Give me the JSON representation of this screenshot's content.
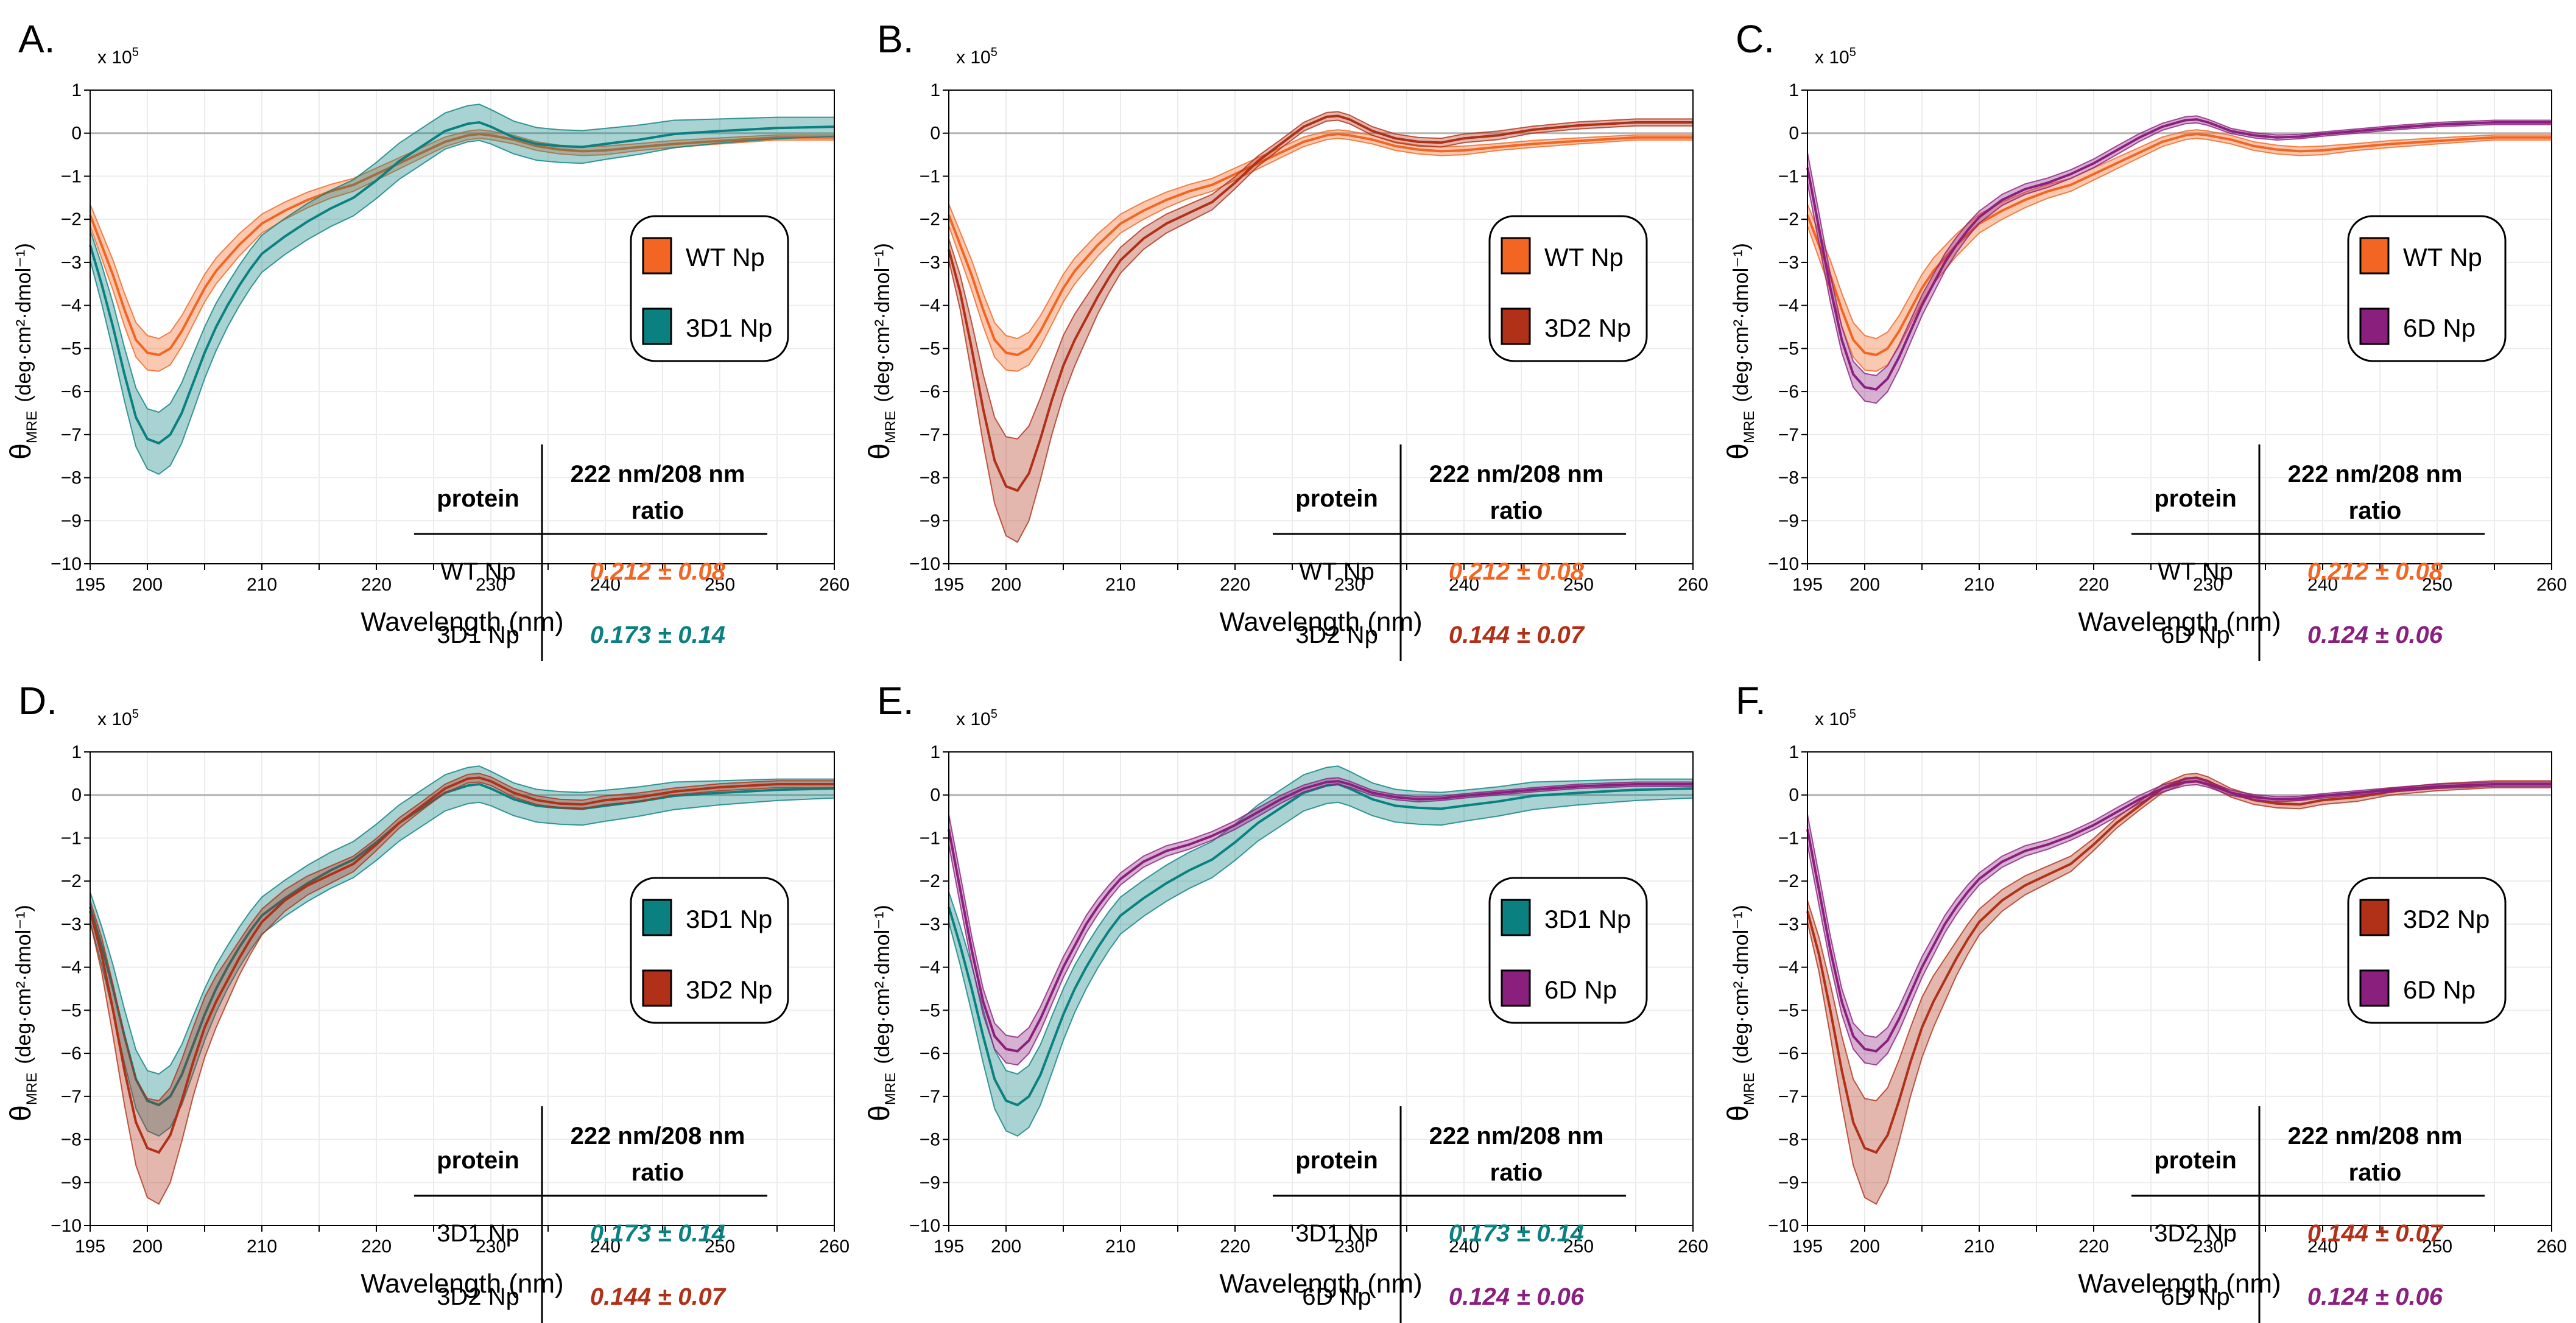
{
  "figure": {
    "colors": {
      "WT Np": "#F26522",
      "3D1 Np": "#0A8080",
      "3D2 Np": "#B03018",
      "6D Np": "#8B1F7E"
    }
  },
  "chart_data": [
    {
      "panel": "A.",
      "type": "area",
      "multiplier_label": "x 10",
      "multiplier_exp": "5",
      "xlabel": "Wavelength (nm)",
      "ylabel_main": "θ",
      "ylabel_sub": "MRE",
      "ylabel_units": "(deg·cm²·dmol⁻¹)",
      "xlim": [
        195,
        260
      ],
      "ylim": [
        -10,
        1
      ],
      "xticks": [
        195,
        200,
        210,
        220,
        230,
        240,
        250,
        260
      ],
      "yticks": [
        1,
        0,
        -1,
        -2,
        -3,
        -4,
        -5,
        -6,
        -7,
        -8,
        -9,
        -10
      ],
      "grid": true,
      "legend_position": "right",
      "series": [
        "WT Np",
        "3D1 Np"
      ],
      "table": {
        "header_protein": "protein",
        "header_ratio_line1": "222 nm/208 nm",
        "header_ratio_line2": "ratio",
        "rows": [
          {
            "protein": "WT Np",
            "ratio": "0.212 ± 0.08"
          },
          {
            "protein": "3D1 Np",
            "ratio": "0.173 ± 0.14"
          }
        ]
      }
    },
    {
      "panel": "B.",
      "type": "area",
      "multiplier_label": "x 10",
      "multiplier_exp": "5",
      "xlabel": "Wavelength (nm)",
      "ylabel_main": "θ",
      "ylabel_sub": "MRE",
      "ylabel_units": "(deg·cm²·dmol⁻¹)",
      "xlim": [
        195,
        260
      ],
      "ylim": [
        -10,
        1
      ],
      "xticks": [
        195,
        200,
        210,
        220,
        230,
        240,
        250,
        260
      ],
      "yticks": [
        1,
        0,
        -1,
        -2,
        -3,
        -4,
        -5,
        -6,
        -7,
        -8,
        -9,
        -10
      ],
      "grid": true,
      "legend_position": "right",
      "series": [
        "WT Np",
        "3D2 Np"
      ],
      "table": {
        "header_protein": "protein",
        "header_ratio_line1": "222 nm/208 nm",
        "header_ratio_line2": "ratio",
        "rows": [
          {
            "protein": "WT Np",
            "ratio": "0.212 ± 0.08"
          },
          {
            "protein": "3D2 Np",
            "ratio": "0.144 ± 0.07"
          }
        ]
      }
    },
    {
      "panel": "C.",
      "type": "area",
      "multiplier_label": "x 10",
      "multiplier_exp": "5",
      "xlabel": "Wavelength (nm)",
      "ylabel_main": "θ",
      "ylabel_sub": "MRE",
      "ylabel_units": "(deg·cm²·dmol⁻¹)",
      "xlim": [
        195,
        260
      ],
      "ylim": [
        -10,
        1
      ],
      "xticks": [
        195,
        200,
        210,
        220,
        230,
        240,
        250,
        260
      ],
      "yticks": [
        1,
        0,
        -1,
        -2,
        -3,
        -4,
        -5,
        -6,
        -7,
        -8,
        -9,
        -10
      ],
      "grid": true,
      "legend_position": "right",
      "series": [
        "WT Np",
        "6D Np"
      ],
      "table": {
        "header_protein": "protein",
        "header_ratio_line1": "222 nm/208 nm",
        "header_ratio_line2": "ratio",
        "rows": [
          {
            "protein": "WT Np",
            "ratio": "0.212 ± 0.08"
          },
          {
            "protein": "6D Np",
            "ratio": "0.124 ± 0.06"
          }
        ]
      }
    },
    {
      "panel": "D.",
      "type": "area",
      "multiplier_label": "x 10",
      "multiplier_exp": "5",
      "xlabel": "Wavelength (nm)",
      "ylabel_main": "θ",
      "ylabel_sub": "MRE",
      "ylabel_units": "(deg·cm²·dmol⁻¹)",
      "xlim": [
        195,
        260
      ],
      "ylim": [
        -10,
        1
      ],
      "xticks": [
        195,
        200,
        210,
        220,
        230,
        240,
        250,
        260
      ],
      "yticks": [
        1,
        0,
        -1,
        -2,
        -3,
        -4,
        -5,
        -6,
        -7,
        -8,
        -9,
        -10
      ],
      "grid": true,
      "legend_position": "right",
      "series": [
        "3D1 Np",
        "3D2 Np"
      ],
      "table": {
        "header_protein": "protein",
        "header_ratio_line1": "222 nm/208 nm",
        "header_ratio_line2": "ratio",
        "rows": [
          {
            "protein": "3D1 Np",
            "ratio": "0.173 ± 0.14"
          },
          {
            "protein": "3D2 Np",
            "ratio": "0.144 ± 0.07"
          }
        ]
      }
    },
    {
      "panel": "E.",
      "type": "area",
      "multiplier_label": "x 10",
      "multiplier_exp": "5",
      "xlabel": "Wavelength (nm)",
      "ylabel_main": "θ",
      "ylabel_sub": "MRE",
      "ylabel_units": "(deg·cm²·dmol⁻¹)",
      "xlim": [
        195,
        260
      ],
      "ylim": [
        -10,
        1
      ],
      "xticks": [
        195,
        200,
        210,
        220,
        230,
        240,
        250,
        260
      ],
      "yticks": [
        1,
        0,
        -1,
        -2,
        -3,
        -4,
        -5,
        -6,
        -7,
        -8,
        -9,
        -10
      ],
      "grid": true,
      "legend_position": "right",
      "series": [
        "3D1 Np",
        "6D Np"
      ],
      "table": {
        "header_protein": "protein",
        "header_ratio_line1": "222 nm/208 nm",
        "header_ratio_line2": "ratio",
        "rows": [
          {
            "protein": "3D1 Np",
            "ratio": "0.173 ± 0.14"
          },
          {
            "protein": "6D Np",
            "ratio": "0.124 ± 0.06"
          }
        ]
      }
    },
    {
      "panel": "F.",
      "type": "area",
      "multiplier_label": "x 10",
      "multiplier_exp": "5",
      "xlabel": "Wavelength (nm)",
      "ylabel_main": "θ",
      "ylabel_sub": "MRE",
      "ylabel_units": "(deg·cm²·dmol⁻¹)",
      "xlim": [
        195,
        260
      ],
      "ylim": [
        -10,
        1
      ],
      "xticks": [
        195,
        200,
        210,
        220,
        230,
        240,
        250,
        260
      ],
      "yticks": [
        1,
        0,
        -1,
        -2,
        -3,
        -4,
        -5,
        -6,
        -7,
        -8,
        -9,
        -10
      ],
      "grid": true,
      "legend_position": "right",
      "series": [
        "3D2 Np",
        "6D Np"
      ],
      "table": {
        "header_protein": "protein",
        "header_ratio_line1": "222 nm/208 nm",
        "header_ratio_line2": "ratio",
        "rows": [
          {
            "protein": "3D2 Np",
            "ratio": "0.144 ± 0.07"
          },
          {
            "protein": "6D Np",
            "ratio": "0.124 ± 0.06"
          }
        ]
      }
    }
  ],
  "spectra": {
    "x": [
      195,
      196,
      197,
      198,
      199,
      200,
      201,
      202,
      203,
      204,
      205,
      206,
      207,
      208,
      209,
      210,
      212,
      214,
      216,
      218,
      220,
      222,
      224,
      226,
      228,
      229,
      230,
      232,
      234,
      236,
      238,
      240,
      243,
      246,
      250,
      255,
      260
    ],
    "WT Np": {
      "mean": [
        -1.9,
        -2.6,
        -3.3,
        -4.1,
        -4.8,
        -5.1,
        -5.15,
        -5.0,
        -4.6,
        -4.1,
        -3.6,
        -3.2,
        -2.9,
        -2.6,
        -2.35,
        -2.1,
        -1.8,
        -1.55,
        -1.35,
        -1.2,
        -0.95,
        -0.7,
        -0.45,
        -0.2,
        -0.05,
        -0.02,
        -0.05,
        -0.15,
        -0.3,
        -0.38,
        -0.42,
        -0.4,
        -0.32,
        -0.25,
        -0.18,
        -0.1,
        -0.1
      ],
      "sd": [
        0.25,
        0.3,
        0.35,
        0.38,
        0.4,
        0.4,
        0.38,
        0.38,
        0.36,
        0.34,
        0.32,
        0.3,
        0.28,
        0.26,
        0.24,
        0.22,
        0.2,
        0.18,
        0.16,
        0.15,
        0.14,
        0.13,
        0.12,
        0.11,
        0.1,
        0.1,
        0.1,
        0.1,
        0.1,
        0.1,
        0.1,
        0.1,
        0.08,
        0.08,
        0.07,
        0.06,
        0.06
      ]
    },
    "3D1 Np": {
      "mean": [
        -2.6,
        -3.5,
        -4.5,
        -5.6,
        -6.6,
        -7.1,
        -7.2,
        -7.0,
        -6.5,
        -5.8,
        -5.1,
        -4.5,
        -4.0,
        -3.55,
        -3.15,
        -2.8,
        -2.4,
        -2.05,
        -1.75,
        -1.5,
        -1.1,
        -0.65,
        -0.3,
        0.05,
        0.22,
        0.25,
        0.15,
        -0.1,
        -0.25,
        -0.3,
        -0.32,
        -0.25,
        -0.15,
        -0.02,
        0.05,
        0.12,
        0.15
      ],
      "sd": [
        0.35,
        0.45,
        0.55,
        0.62,
        0.68,
        0.7,
        0.72,
        0.72,
        0.7,
        0.66,
        0.6,
        0.55,
        0.5,
        0.47,
        0.45,
        0.43,
        0.42,
        0.42,
        0.42,
        0.42,
        0.42,
        0.42,
        0.42,
        0.42,
        0.42,
        0.42,
        0.4,
        0.38,
        0.38,
        0.38,
        0.38,
        0.36,
        0.34,
        0.32,
        0.28,
        0.25,
        0.22
      ]
    },
    "3D2 Np": {
      "mean": [
        -2.7,
        -3.7,
        -5.0,
        -6.4,
        -7.6,
        -8.2,
        -8.3,
        -7.9,
        -7.1,
        -6.2,
        -5.4,
        -4.8,
        -4.3,
        -3.8,
        -3.35,
        -2.95,
        -2.45,
        -2.1,
        -1.85,
        -1.6,
        -1.15,
        -0.65,
        -0.25,
        0.15,
        0.38,
        0.4,
        0.32,
        0.05,
        -0.12,
        -0.2,
        -0.22,
        -0.12,
        -0.05,
        0.08,
        0.18,
        0.25,
        0.25
      ],
      "sd": [
        0.25,
        0.4,
        0.6,
        0.8,
        1.0,
        1.15,
        1.2,
        1.1,
        0.95,
        0.8,
        0.7,
        0.6,
        0.5,
        0.4,
        0.35,
        0.3,
        0.25,
        0.22,
        0.2,
        0.18,
        0.14,
        0.12,
        0.1,
        0.1,
        0.1,
        0.1,
        0.1,
        0.1,
        0.1,
        0.1,
        0.1,
        0.1,
        0.1,
        0.08,
        0.08,
        0.08,
        0.08
      ]
    },
    "6D Np": {
      "mean": [
        -0.8,
        -2.2,
        -3.6,
        -4.8,
        -5.6,
        -5.9,
        -5.95,
        -5.7,
        -5.2,
        -4.6,
        -4.0,
        -3.5,
        -3.0,
        -2.6,
        -2.25,
        -1.95,
        -1.55,
        -1.3,
        -1.15,
        -0.95,
        -0.7,
        -0.4,
        -0.1,
        0.15,
        0.3,
        0.32,
        0.25,
        0.05,
        -0.05,
        -0.1,
        -0.08,
        -0.02,
        0.05,
        0.12,
        0.2,
        0.25,
        0.25
      ],
      "sd": [
        0.35,
        0.35,
        0.32,
        0.3,
        0.3,
        0.32,
        0.32,
        0.3,
        0.28,
        0.26,
        0.24,
        0.22,
        0.2,
        0.18,
        0.16,
        0.14,
        0.13,
        0.12,
        0.11,
        0.1,
        0.1,
        0.1,
        0.09,
        0.08,
        0.08,
        0.08,
        0.07,
        0.06,
        0.06,
        0.06,
        0.05,
        0.05,
        0.05,
        0.05,
        0.05,
        0.05,
        0.05
      ]
    }
  }
}
